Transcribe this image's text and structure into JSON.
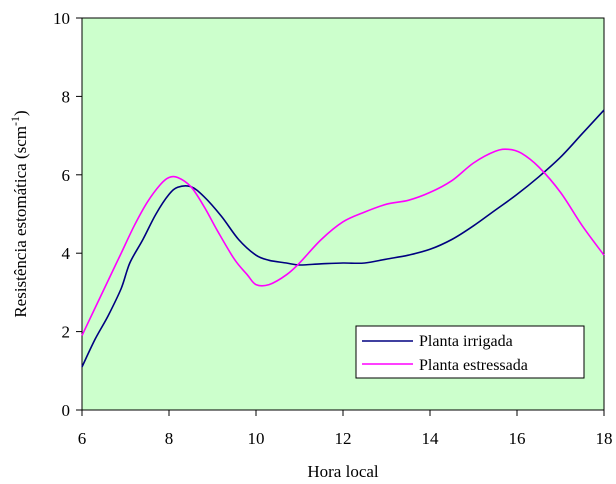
{
  "chart_data": {
    "type": "line",
    "title": "",
    "xlabel": "Hora local",
    "ylabel": "Resistência estomática (scm",
    "ylabel_superscript": "-1",
    "ylabel_close": ")",
    "xlim": [
      6,
      18
    ],
    "ylim": [
      0,
      10
    ],
    "x_ticks": [
      6,
      8,
      10,
      12,
      14,
      16,
      18
    ],
    "y_ticks": [
      0,
      2,
      4,
      6,
      8,
      10
    ],
    "grid": false,
    "legend_position": "bottom-right",
    "plot_background": "#ccffcc",
    "series": [
      {
        "name": "Planta irrigada",
        "color": "#000080",
        "points": [
          [
            6.0,
            1.1
          ],
          [
            6.3,
            1.8
          ],
          [
            6.6,
            2.4
          ],
          [
            6.9,
            3.1
          ],
          [
            7.1,
            3.75
          ],
          [
            7.4,
            4.35
          ],
          [
            7.7,
            5.0
          ],
          [
            8.0,
            5.5
          ],
          [
            8.2,
            5.68
          ],
          [
            8.5,
            5.7
          ],
          [
            8.8,
            5.45
          ],
          [
            9.2,
            4.95
          ],
          [
            9.6,
            4.35
          ],
          [
            10.0,
            3.95
          ],
          [
            10.3,
            3.82
          ],
          [
            10.7,
            3.75
          ],
          [
            11.0,
            3.7
          ],
          [
            11.5,
            3.73
          ],
          [
            12.0,
            3.75
          ],
          [
            12.5,
            3.75
          ],
          [
            13.0,
            3.85
          ],
          [
            13.5,
            3.95
          ],
          [
            14.0,
            4.1
          ],
          [
            14.5,
            4.35
          ],
          [
            15.0,
            4.7
          ],
          [
            15.5,
            5.1
          ],
          [
            16.0,
            5.5
          ],
          [
            16.5,
            5.95
          ],
          [
            17.0,
            6.45
          ],
          [
            17.5,
            7.05
          ],
          [
            18.0,
            7.65
          ]
        ]
      },
      {
        "name": "Planta estressada",
        "color": "#ff00ff",
        "points": [
          [
            6.0,
            1.9
          ],
          [
            6.3,
            2.6
          ],
          [
            6.6,
            3.3
          ],
          [
            6.9,
            4.0
          ],
          [
            7.2,
            4.7
          ],
          [
            7.5,
            5.3
          ],
          [
            7.8,
            5.75
          ],
          [
            8.0,
            5.93
          ],
          [
            8.2,
            5.93
          ],
          [
            8.5,
            5.7
          ],
          [
            8.8,
            5.2
          ],
          [
            9.1,
            4.6
          ],
          [
            9.5,
            3.85
          ],
          [
            9.8,
            3.45
          ],
          [
            10.0,
            3.2
          ],
          [
            10.3,
            3.2
          ],
          [
            10.7,
            3.45
          ],
          [
            11.0,
            3.75
          ],
          [
            11.5,
            4.35
          ],
          [
            12.0,
            4.8
          ],
          [
            12.5,
            5.05
          ],
          [
            13.0,
            5.25
          ],
          [
            13.5,
            5.35
          ],
          [
            14.0,
            5.55
          ],
          [
            14.5,
            5.85
          ],
          [
            15.0,
            6.3
          ],
          [
            15.5,
            6.6
          ],
          [
            15.8,
            6.65
          ],
          [
            16.1,
            6.55
          ],
          [
            16.5,
            6.2
          ],
          [
            17.0,
            5.55
          ],
          [
            17.5,
            4.7
          ],
          [
            18.0,
            3.95
          ]
        ]
      }
    ]
  }
}
